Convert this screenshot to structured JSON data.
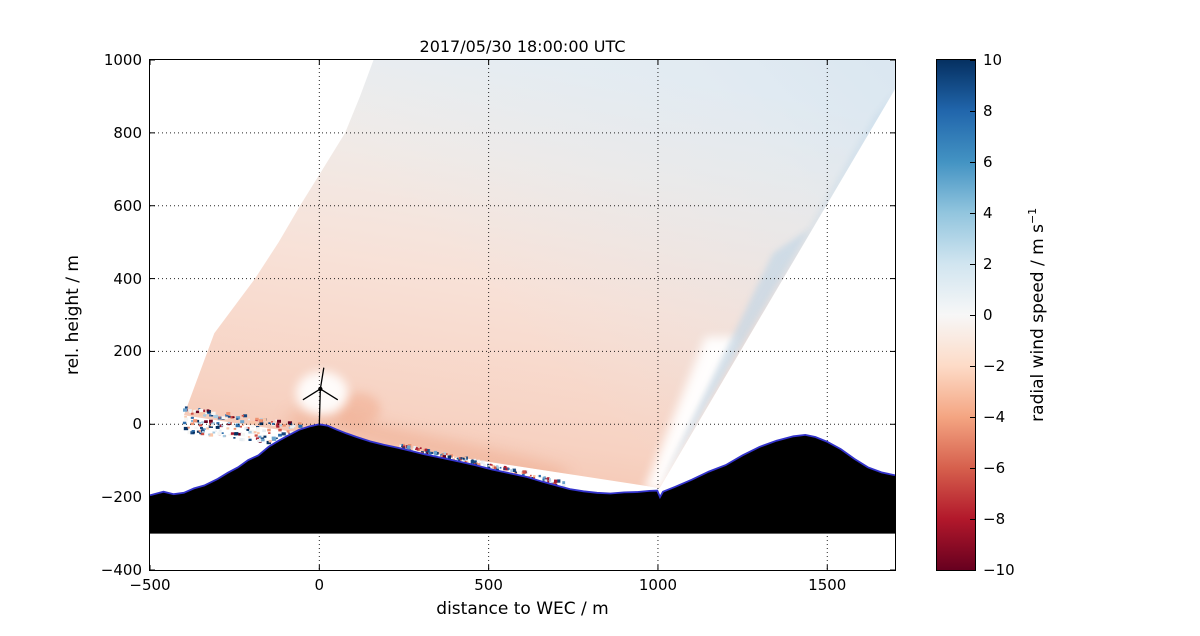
{
  "title": "2017/05/30 18:00:00 UTC",
  "axes": {
    "xlabel": "distance to WEC / m",
    "ylabel": "rel. height / m"
  },
  "colorbar": {
    "label_main": "radial wind speed / m s",
    "label_exp": "−1"
  },
  "chart_data": {
    "type": "heatmap",
    "title": "2017/05/30 18:00:00 UTC",
    "xlabel": "distance to WEC / m",
    "ylabel": "rel. height / m",
    "xlim": [
      -500,
      1700
    ],
    "ylim": [
      -400,
      1000
    ],
    "xticks": [
      -500,
      0,
      500,
      1000,
      1500
    ],
    "yticks": [
      -400,
      -200,
      0,
      200,
      400,
      600,
      800,
      1000
    ],
    "grid": {
      "style": "dotted",
      "color": "#000000"
    },
    "colorbar": {
      "label": "radial wind speed / m s⁻¹",
      "min": -10,
      "max": 10,
      "ticks": [
        10,
        8,
        6,
        4,
        2,
        0,
        -2,
        -4,
        -6,
        -8,
        -10
      ],
      "colormap": "RdBu",
      "colors_top_to_bottom": [
        "#053061",
        "#2166ac",
        "#4393c3",
        "#92c5de",
        "#d1e5f0",
        "#f7f7f7",
        "#fddbc7",
        "#f4a582",
        "#d6604d",
        "#b2182b",
        "#67001f"
      ]
    },
    "scan": {
      "kind": "lidar RHI scan fan of radial wind speed around wind energy converter",
      "origin_m": [
        1005,
        -175
      ],
      "lower_edge_end_m": [
        -400,
        25
      ],
      "max_range_arc_m": [
        [
          -400,
          25
        ],
        [
          -310,
          250
        ],
        [
          -190,
          400
        ],
        [
          -120,
          500
        ],
        [
          -57,
          600
        ],
        [
          10,
          700
        ],
        [
          76,
          800
        ],
        [
          120,
          900
        ],
        [
          160,
          1000
        ]
      ],
      "upper_edge_exit_m": [
        1700,
        920
      ],
      "typical_values_ms": {
        "near_ground_wake": -3,
        "mid_fan": -1.5,
        "upper_fan": -0.5,
        "right_edge_band": 1.5
      },
      "fill_gradient": [
        "#f1b69c",
        "#f7d2c2",
        "#f8e1d7",
        "#f0ebe8",
        "#e8eef3"
      ],
      "right_tint": "#d7e5f0",
      "streak_blue": "#bcd4e6"
    },
    "terrain": {
      "fill": "#000000",
      "outline": "#3333cc",
      "base_m": -300,
      "profile_m": [
        [
          -500,
          -195
        ],
        [
          -460,
          -185
        ],
        [
          -430,
          -192
        ],
        [
          -400,
          -188
        ],
        [
          -370,
          -176
        ],
        [
          -340,
          -168
        ],
        [
          -300,
          -150
        ],
        [
          -270,
          -133
        ],
        [
          -240,
          -118
        ],
        [
          -210,
          -98
        ],
        [
          -180,
          -85
        ],
        [
          -150,
          -62
        ],
        [
          -120,
          -45
        ],
        [
          -90,
          -30
        ],
        [
          -60,
          -15
        ],
        [
          -30,
          -6
        ],
        [
          0,
          0
        ],
        [
          25,
          -4
        ],
        [
          50,
          -14
        ],
        [
          80,
          -25
        ],
        [
          110,
          -35
        ],
        [
          150,
          -47
        ],
        [
          190,
          -56
        ],
        [
          230,
          -64
        ],
        [
          270,
          -73
        ],
        [
          310,
          -82
        ],
        [
          360,
          -92
        ],
        [
          410,
          -102
        ],
        [
          460,
          -112
        ],
        [
          510,
          -124
        ],
        [
          560,
          -134
        ],
        [
          610,
          -144
        ],
        [
          660,
          -158
        ],
        [
          700,
          -168
        ],
        [
          740,
          -178
        ],
        [
          780,
          -184
        ],
        [
          820,
          -188
        ],
        [
          860,
          -190
        ],
        [
          900,
          -187
        ],
        [
          940,
          -186
        ],
        [
          975,
          -183
        ],
        [
          998,
          -182
        ],
        [
          1006,
          -200
        ],
        [
          1015,
          -185
        ],
        [
          1050,
          -172
        ],
        [
          1100,
          -152
        ],
        [
          1150,
          -130
        ],
        [
          1200,
          -112
        ],
        [
          1250,
          -85
        ],
        [
          1300,
          -62
        ],
        [
          1350,
          -45
        ],
        [
          1400,
          -33
        ],
        [
          1435,
          -29
        ],
        [
          1465,
          -35
        ],
        [
          1500,
          -48
        ],
        [
          1540,
          -68
        ],
        [
          1580,
          -95
        ],
        [
          1620,
          -118
        ],
        [
          1660,
          -132
        ],
        [
          1700,
          -140
        ]
      ]
    },
    "turbine": {
      "x_m": 0,
      "base_m": 0,
      "hub_m": 97,
      "rotor_radius_m": 58
    },
    "noise": {
      "left_cluster": {
        "x_m": [
          -405,
          -30
        ],
        "y_m": [
          -60,
          95
        ],
        "n": 240
      },
      "surface_cluster": {
        "x_m": [
          220,
          720
        ],
        "offset_above_terrain_m": [
          2,
          18
        ],
        "n": 150
      },
      "palette": [
        "#053061",
        "#16477e",
        "#2e6fad",
        "#6ba3cc",
        "#a8cbe2",
        "#e8eef3",
        "#f6f6f4",
        "#fbc6a8",
        "#ee9271",
        "#cf5246",
        "#a81c32",
        "#67001f"
      ]
    }
  }
}
